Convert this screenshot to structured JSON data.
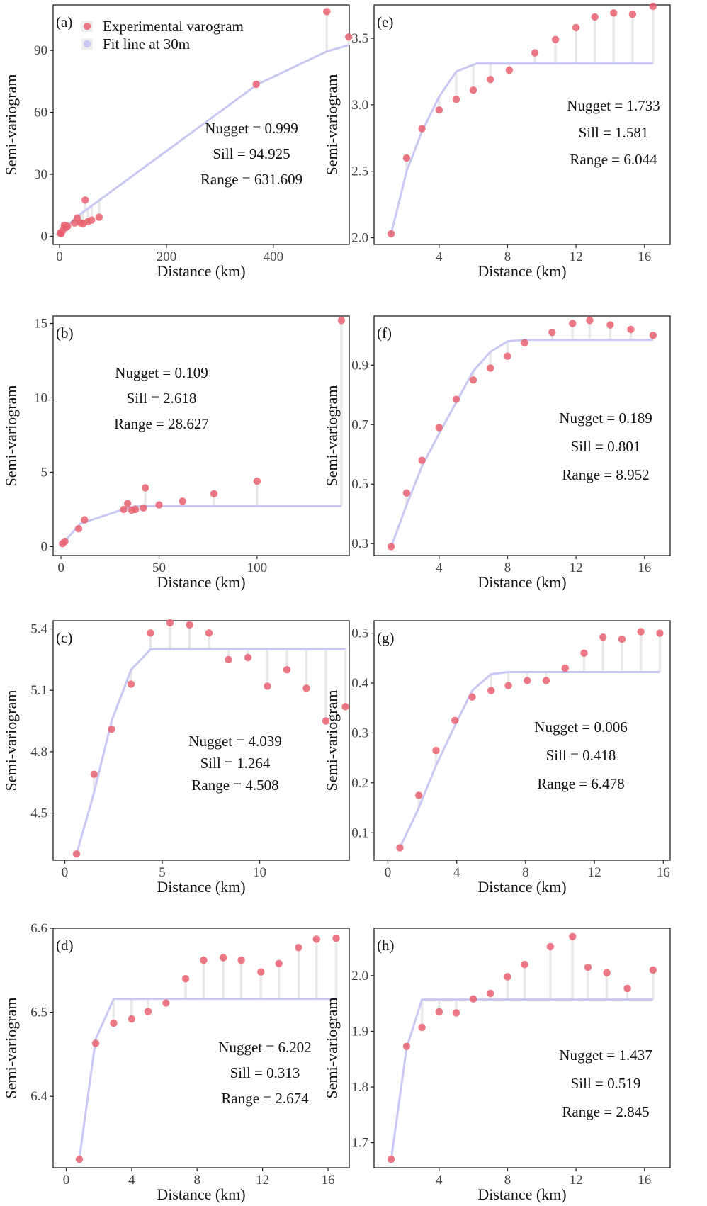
{
  "legend": {
    "experimental_label": "Experimental varogram",
    "fit_label": "Fit line at 30m"
  },
  "colors": {
    "point": "#e8606f",
    "fit_line": "#c9c7f3",
    "residual": "#e9e9e9",
    "frame": "#222222"
  },
  "chart_data": [
    {
      "type": "scatter",
      "panel_label": "(a)",
      "xlabel": "Distance (km)",
      "ylabel": "Semi-variogram",
      "xlim": [
        -12,
        542
      ],
      "ylim": [
        -4,
        112
      ],
      "xticks": [
        0,
        200,
        400
      ],
      "yticks": [
        0,
        30,
        60,
        90
      ],
      "tick_decimals": 0,
      "legend": true,
      "points": [
        [
          1,
          1.5
        ],
        [
          3,
          1.2
        ],
        [
          6,
          2.8
        ],
        [
          9,
          5.3
        ],
        [
          12,
          4.2
        ],
        [
          15,
          4.8
        ],
        [
          28,
          6.4
        ],
        [
          33,
          8.8
        ],
        [
          39,
          6.5
        ],
        [
          44,
          6.1
        ],
        [
          48,
          17.5
        ],
        [
          53,
          7.0
        ],
        [
          60,
          7.8
        ],
        [
          74,
          9.2
        ],
        [
          368,
          73.6
        ],
        [
          500,
          108.8
        ],
        [
          541,
          96.5
        ]
      ],
      "fit_line": [
        [
          0,
          1.0
        ],
        [
          30,
          9.0
        ],
        [
          370,
          73.5
        ],
        [
          500,
          89.5
        ],
        [
          541,
          92.5
        ]
      ],
      "nugget_text": "Nugget = 0.999",
      "sill_text": "Sill = 94.925",
      "range_text": "Range = 631.609"
    },
    {
      "type": "scatter",
      "panel_label": "(e)",
      "xlabel": "Distance (km)",
      "ylabel": "Semi-variogram",
      "xlim": [
        0.2,
        17.5
      ],
      "ylim": [
        1.95,
        3.75
      ],
      "xticks": [
        4,
        8,
        12,
        16
      ],
      "yticks": [
        2.0,
        2.5,
        3.0,
        3.5
      ],
      "tick_decimals": 1,
      "legend": false,
      "points": [
        [
          1.2,
          2.03
        ],
        [
          2.1,
          2.6
        ],
        [
          3.0,
          2.82
        ],
        [
          4.0,
          2.96
        ],
        [
          5.0,
          3.04
        ],
        [
          6.0,
          3.11
        ],
        [
          7.0,
          3.19
        ],
        [
          8.1,
          3.26
        ],
        [
          9.6,
          3.39
        ],
        [
          10.8,
          3.49
        ],
        [
          12.0,
          3.58
        ],
        [
          13.1,
          3.66
        ],
        [
          14.2,
          3.69
        ],
        [
          15.3,
          3.68
        ],
        [
          16.5,
          3.74
        ]
      ],
      "fit_line": [
        [
          1.2,
          2.03
        ],
        [
          2.1,
          2.5
        ],
        [
          3.0,
          2.8
        ],
        [
          4.0,
          3.06
        ],
        [
          5.0,
          3.25
        ],
        [
          6.2,
          3.31
        ],
        [
          16.5,
          3.31
        ]
      ],
      "nugget_text": "Nugget = 1.733",
      "sill_text": "Sill = 1.581",
      "range_text": "Range = 6.044"
    },
    {
      "type": "scatter",
      "panel_label": "(b)",
      "xlabel": "Distance (km)",
      "ylabel": "Semi-variogram",
      "xlim": [
        -4,
        147
      ],
      "ylim": [
        -0.6,
        15.5
      ],
      "xticks": [
        0,
        50,
        100
      ],
      "yticks": [
        0,
        5,
        10,
        15
      ],
      "tick_decimals": 0,
      "legend": false,
      "points": [
        [
          0.8,
          0.2
        ],
        [
          2.0,
          0.35
        ],
        [
          9.0,
          1.2
        ],
        [
          12.0,
          1.8
        ],
        [
          32.0,
          2.5
        ],
        [
          34.0,
          2.9
        ],
        [
          36.0,
          2.45
        ],
        [
          38.0,
          2.5
        ],
        [
          42.0,
          2.6
        ],
        [
          43.0,
          3.95
        ],
        [
          50.0,
          2.8
        ],
        [
          62.0,
          3.05
        ],
        [
          78.0,
          3.55
        ],
        [
          100.0,
          4.4
        ],
        [
          143.0,
          15.2
        ]
      ],
      "fit_line": [
        [
          0,
          0.1
        ],
        [
          10,
          1.55
        ],
        [
          34,
          2.6
        ],
        [
          38,
          2.72
        ],
        [
          143,
          2.72
        ]
      ],
      "nugget_text": "Nugget = 0.109",
      "sill_text": "Sill = 2.618",
      "range_text": "Range = 28.627"
    },
    {
      "type": "scatter",
      "panel_label": "(f)",
      "xlabel": "Distance (km)",
      "ylabel": "Semi-variogram",
      "xlim": [
        0.2,
        17.5
      ],
      "ylim": [
        0.26,
        1.065
      ],
      "xticks": [
        4,
        8,
        12,
        16
      ],
      "yticks": [
        0.3,
        0.5,
        0.7,
        0.9
      ],
      "tick_decimals": 1,
      "legend": false,
      "points": [
        [
          1.2,
          0.29
        ],
        [
          2.1,
          0.47
        ],
        [
          3.0,
          0.58
        ],
        [
          4.0,
          0.69
        ],
        [
          5.0,
          0.785
        ],
        [
          6.0,
          0.85
        ],
        [
          7.0,
          0.89
        ],
        [
          8.0,
          0.93
        ],
        [
          9.0,
          0.975
        ],
        [
          10.6,
          1.01
        ],
        [
          11.8,
          1.04
        ],
        [
          12.8,
          1.05
        ],
        [
          14.0,
          1.035
        ],
        [
          15.2,
          1.02
        ],
        [
          16.5,
          1.0
        ]
      ],
      "fit_line": [
        [
          1.2,
          0.29
        ],
        [
          2.1,
          0.43
        ],
        [
          3.0,
          0.56
        ],
        [
          4.0,
          0.67
        ],
        [
          5.0,
          0.775
        ],
        [
          6.0,
          0.88
        ],
        [
          7.0,
          0.945
        ],
        [
          8.0,
          0.98
        ],
        [
          9.0,
          0.985
        ],
        [
          16.5,
          0.985
        ]
      ],
      "nugget_text": "Nugget = 0.189",
      "sill_text": "Sill = 0.801",
      "range_text": "Range = 8.952"
    },
    {
      "type": "scatter",
      "panel_label": "(c)",
      "xlabel": "Distance (km)",
      "ylabel": "Semi-variogram",
      "xlim": [
        -0.6,
        14.6
      ],
      "ylim": [
        4.27,
        5.44
      ],
      "xticks": [
        0,
        5,
        10
      ],
      "yticks": [
        4.5,
        4.8,
        5.1,
        5.4
      ],
      "tick_decimals": 1,
      "legend": false,
      "points": [
        [
          0.6,
          4.3
        ],
        [
          1.5,
          4.69
        ],
        [
          2.4,
          4.91
        ],
        [
          3.4,
          5.13
        ],
        [
          4.4,
          5.38
        ],
        [
          5.4,
          5.43
        ],
        [
          6.4,
          5.42
        ],
        [
          7.4,
          5.38
        ],
        [
          8.4,
          5.25
        ],
        [
          9.4,
          5.26
        ],
        [
          10.4,
          5.12
        ],
        [
          11.4,
          5.2
        ],
        [
          12.4,
          5.11
        ],
        [
          13.4,
          4.95
        ],
        [
          14.4,
          5.02
        ]
      ],
      "fit_line": [
        [
          0.6,
          4.3
        ],
        [
          1.5,
          4.6
        ],
        [
          2.4,
          4.95
        ],
        [
          3.4,
          5.2
        ],
        [
          4.4,
          5.3
        ],
        [
          14.4,
          5.3
        ]
      ],
      "nugget_text": "Nugget = 4.039",
      "sill_text": "Sill = 1.264",
      "range_text": "Range = 4.508"
    },
    {
      "type": "scatter",
      "panel_label": "(g)",
      "xlabel": "Distance (km)",
      "ylabel": "Semi-variogram",
      "xlim": [
        -0.8,
        16.4
      ],
      "ylim": [
        0.045,
        0.525
      ],
      "xticks": [
        0,
        4,
        8,
        12,
        16
      ],
      "yticks": [
        0.1,
        0.2,
        0.3,
        0.4,
        0.5
      ],
      "tick_decimals": 1,
      "legend": false,
      "points": [
        [
          0.7,
          0.07
        ],
        [
          1.8,
          0.175
        ],
        [
          2.8,
          0.265
        ],
        [
          3.9,
          0.325
        ],
        [
          4.9,
          0.372
        ],
        [
          6.0,
          0.385
        ],
        [
          7.0,
          0.395
        ],
        [
          8.1,
          0.405
        ],
        [
          9.2,
          0.405
        ],
        [
          10.3,
          0.43
        ],
        [
          11.4,
          0.46
        ],
        [
          12.5,
          0.492
        ],
        [
          13.6,
          0.488
        ],
        [
          14.7,
          0.503
        ],
        [
          15.8,
          0.5
        ]
      ],
      "fit_line": [
        [
          0.7,
          0.07
        ],
        [
          1.8,
          0.15
        ],
        [
          2.8,
          0.235
        ],
        [
          3.9,
          0.315
        ],
        [
          4.9,
          0.385
        ],
        [
          6.0,
          0.418
        ],
        [
          7.0,
          0.422
        ],
        [
          15.8,
          0.422
        ]
      ],
      "nugget_text": "Nugget = 0.006",
      "sill_text": "Sill = 0.418",
      "range_text": "Range = 6.478"
    },
    {
      "type": "scatter",
      "panel_label": "(d)",
      "xlabel": "Distance (km)",
      "ylabel": "Semi-variogram",
      "xlim": [
        -0.8,
        17.3
      ],
      "ylim": [
        6.315,
        6.6
      ],
      "xticks": [
        0,
        4,
        8,
        12,
        16
      ],
      "yticks": [
        6.4,
        6.5,
        6.6
      ],
      "tick_decimals": 1,
      "legend": false,
      "points": [
        [
          0.8,
          6.325
        ],
        [
          1.8,
          6.463
        ],
        [
          2.9,
          6.487
        ],
        [
          4.0,
          6.492
        ],
        [
          5.0,
          6.501
        ],
        [
          6.1,
          6.511
        ],
        [
          7.3,
          6.54
        ],
        [
          8.4,
          6.562
        ],
        [
          9.6,
          6.565
        ],
        [
          10.7,
          6.562
        ],
        [
          11.9,
          6.548
        ],
        [
          13.0,
          6.558
        ],
        [
          14.2,
          6.577
        ],
        [
          15.3,
          6.587
        ],
        [
          16.5,
          6.588
        ]
      ],
      "fit_line": [
        [
          0.8,
          6.325
        ],
        [
          1.8,
          6.468
        ],
        [
          2.9,
          6.516
        ],
        [
          16.5,
          6.516
        ]
      ],
      "nugget_text": "Nugget = 6.202",
      "sill_text": "Sill = 0.313",
      "range_text": "Range = 2.674"
    },
    {
      "type": "scatter",
      "panel_label": "(h)",
      "xlabel": "Distance (km)",
      "ylabel": "Semi-variogram",
      "xlim": [
        0.2,
        17.5
      ],
      "ylim": [
        1.655,
        2.085
      ],
      "xticks": [
        4,
        8,
        12,
        16
      ],
      "yticks": [
        1.7,
        1.8,
        1.9,
        2.0
      ],
      "tick_decimals": 1,
      "legend": false,
      "points": [
        [
          1.2,
          1.67
        ],
        [
          2.1,
          1.873
        ],
        [
          3.0,
          1.907
        ],
        [
          4.0,
          1.935
        ],
        [
          5.0,
          1.933
        ],
        [
          6.0,
          1.958
        ],
        [
          7.0,
          1.968
        ],
        [
          8.0,
          1.998
        ],
        [
          9.0,
          2.02
        ],
        [
          10.5,
          2.052
        ],
        [
          11.8,
          2.07
        ],
        [
          12.7,
          2.015
        ],
        [
          13.8,
          2.005
        ],
        [
          15.0,
          1.977
        ],
        [
          16.5,
          2.01
        ]
      ],
      "fit_line": [
        [
          1.2,
          1.67
        ],
        [
          2.1,
          1.87
        ],
        [
          3.0,
          1.957
        ],
        [
          16.5,
          1.957
        ]
      ],
      "nugget_text": "Nugget = 1.437",
      "sill_text": "Sill = 0.519",
      "range_text": "Range = 2.845"
    }
  ]
}
